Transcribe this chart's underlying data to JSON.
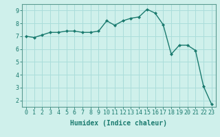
{
  "x": [
    0,
    1,
    2,
    3,
    4,
    5,
    6,
    7,
    8,
    9,
    10,
    11,
    12,
    13,
    14,
    15,
    16,
    17,
    18,
    19,
    20,
    21,
    22,
    23
  ],
  "y": [
    7.0,
    6.9,
    7.1,
    7.3,
    7.3,
    7.4,
    7.4,
    7.3,
    7.3,
    7.4,
    8.2,
    7.85,
    8.2,
    8.4,
    8.5,
    9.1,
    8.8,
    7.9,
    5.6,
    6.3,
    6.3,
    5.9,
    3.1,
    1.7
  ],
  "line_color": "#1a7a6e",
  "marker": "D",
  "marker_size": 2.0,
  "bg_color": "#cff0eb",
  "grid_color": "#aaddda",
  "xlabel": "Humidex (Indice chaleur)",
  "xlim": [
    -0.5,
    23.5
  ],
  "ylim": [
    1.5,
    9.5
  ],
  "yticks": [
    2,
    3,
    4,
    5,
    6,
    7,
    8,
    9
  ],
  "xticks": [
    0,
    1,
    2,
    3,
    4,
    5,
    6,
    7,
    8,
    9,
    10,
    11,
    12,
    13,
    14,
    15,
    16,
    17,
    18,
    19,
    20,
    21,
    22,
    23
  ],
  "tick_color": "#1a7a6e",
  "label_color": "#1a7a6e",
  "spine_color": "#5a9a90",
  "font_size": 6,
  "xlabel_fontsize": 7,
  "line_width": 1.0
}
